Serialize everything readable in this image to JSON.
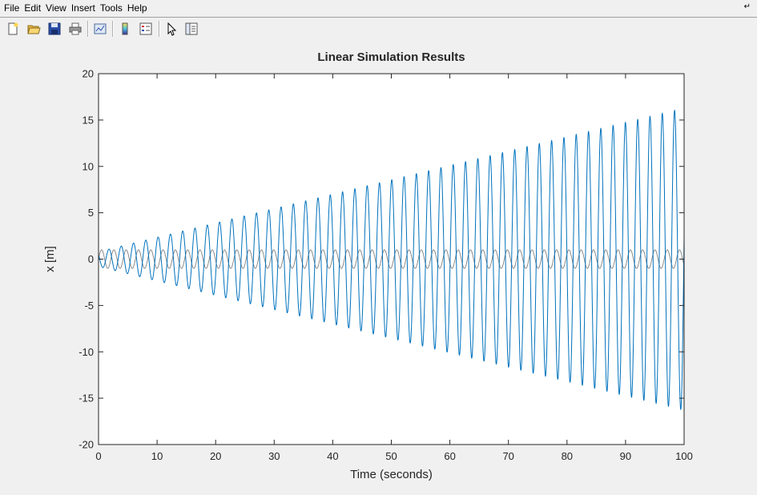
{
  "menu": {
    "items": [
      "File",
      "Edit",
      "View",
      "Insert",
      "Tools",
      "Help"
    ]
  },
  "toolbar": {
    "icons": [
      "new-figure-icon",
      "open-file-icon",
      "save-icon",
      "print-icon",
      "print-preview-icon",
      "colorbar-icon",
      "legend-icon",
      "pointer-icon",
      "property-editor-icon"
    ]
  },
  "chart_data": {
    "type": "line",
    "title": "Linear Simulation Results",
    "xlabel": "Time (seconds)",
    "ylabel": "x [m]",
    "xlim": [
      0,
      100
    ],
    "ylim": [
      -20,
      20
    ],
    "xticks": [
      0,
      10,
      20,
      30,
      40,
      50,
      60,
      70,
      80,
      90,
      100
    ],
    "yticks": [
      -20,
      -15,
      -10,
      -5,
      0,
      5,
      10,
      15,
      20
    ],
    "grid": false,
    "series": [
      {
        "color": "#0072bd",
        "form": "oscillation with linearly growing envelope",
        "envelope_start": 0.8,
        "envelope_end": 16.3,
        "period": 2.1
      },
      {
        "color": "#808080",
        "form": "steady sinusoid",
        "amplitude": 1.0,
        "period": 2.1
      }
    ],
    "colors": {
      "response": "#0072bd",
      "input": "#808080"
    }
  }
}
